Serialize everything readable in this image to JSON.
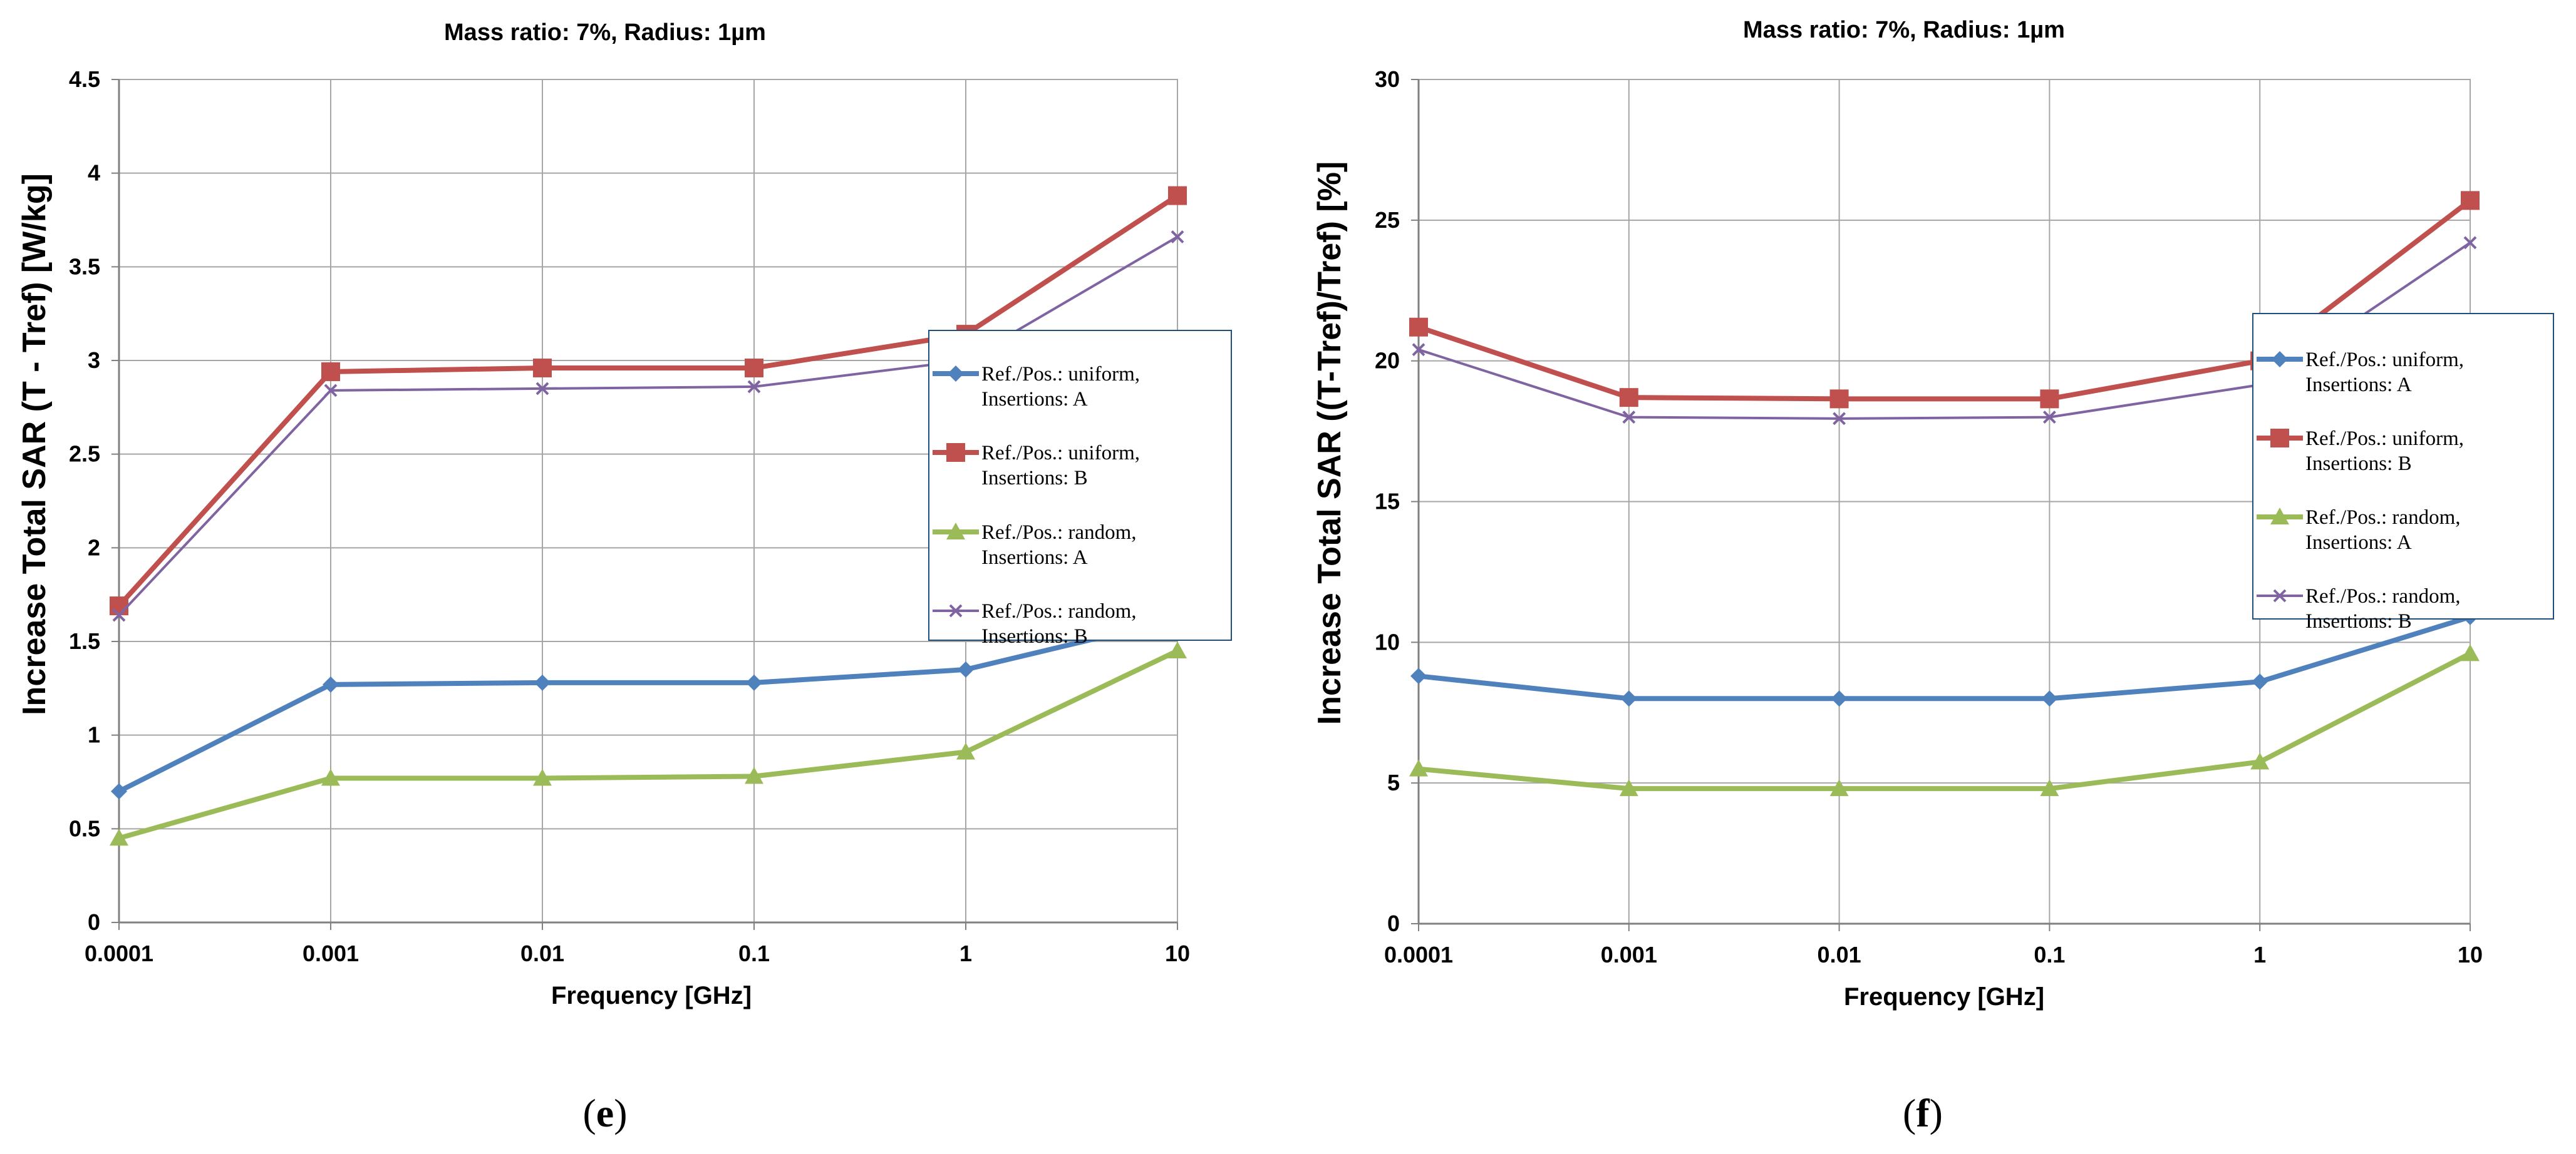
{
  "colors": {
    "uniform_A": "#4F81BD",
    "uniform_B": "#C0504D",
    "random_A": "#9BBB59",
    "random_B": "#8064A2",
    "grid": "#A6A6A6",
    "axis": "#808080",
    "legend_border": "#1F4E79"
  },
  "chart_data": [
    {
      "type": "line",
      "panel_caption": "e",
      "title": "Mass ratio: 7%, Radius: 1µm",
      "xlabel": "Frequency [GHz]",
      "ylabel": "Increase Total SAR (T - Tref) [W/kg]",
      "categories": [
        "0.0001",
        "0.001",
        "0.01",
        "0.1",
        "1",
        "10"
      ],
      "ylim": [
        0,
        4.5
      ],
      "yticks": [
        "0",
        "0.5",
        "1",
        "1.5",
        "2",
        "2.5",
        "3",
        "3.5",
        "4",
        "4.5"
      ],
      "grid": true,
      "legend_position": "right",
      "series": [
        {
          "key": "uniform_A",
          "name": "Ref./Pos.: uniform, Insertions: A",
          "line1": "Ref./Pos.: uniform,",
          "line2": "Insertions: A",
          "marker": "diamond",
          "values": [
            0.7,
            1.27,
            1.28,
            1.28,
            1.35,
            1.62
          ]
        },
        {
          "key": "uniform_B",
          "name": "Ref./Pos.: uniform, Insertions: B",
          "line1": "Ref./Pos.: uniform,",
          "line2": "Insertions: B",
          "marker": "square",
          "values": [
            1.69,
            2.94,
            2.96,
            2.96,
            3.14,
            3.88
          ]
        },
        {
          "key": "random_A",
          "name": "Ref./Pos.: random, Insertions: A",
          "line1": "Ref./Pos.: random,",
          "line2": "Insertions: A",
          "marker": "triangle",
          "values": [
            0.45,
            0.77,
            0.77,
            0.78,
            0.91,
            1.45
          ]
        },
        {
          "key": "random_B",
          "name": "Ref./Pos.: random, Insertions: B",
          "line1": "Ref./Pos.: random,",
          "line2": "Insertions: B",
          "marker": "x",
          "values": [
            1.64,
            2.84,
            2.85,
            2.86,
            3.0,
            3.66
          ]
        }
      ]
    },
    {
      "type": "line",
      "panel_caption": "f",
      "title": "Mass ratio: 7%, Radius: 1µm",
      "xlabel": "Frequency [GHz]",
      "ylabel": "Increase Total SAR ((T-Tref)/Tref) [%]",
      "categories": [
        "0.0001",
        "0.001",
        "0.01",
        "0.1",
        "1",
        "10"
      ],
      "ylim": [
        0,
        30
      ],
      "yticks": [
        "0",
        "5",
        "10",
        "15",
        "20",
        "25",
        "30"
      ],
      "grid": true,
      "legend_position": "right",
      "series": [
        {
          "key": "uniform_A",
          "name": "Ref./Pos.: uniform, Insertions: A",
          "line1": "Ref./Pos.: uniform,",
          "line2": "Insertions: A",
          "marker": "diamond",
          "values": [
            8.8,
            8.0,
            8.0,
            8.0,
            8.6,
            10.9
          ]
        },
        {
          "key": "uniform_B",
          "name": "Ref./Pos.: uniform, Insertions: B",
          "line1": "Ref./Pos.: uniform,",
          "line2": "Insertions: B",
          "marker": "square",
          "values": [
            21.2,
            18.7,
            18.65,
            18.65,
            20.0,
            25.7
          ]
        },
        {
          "key": "random_A",
          "name": "Ref./Pos.: random, Insertions: A",
          "line1": "Ref./Pos.: random,",
          "line2": "Insertions: A",
          "marker": "triangle",
          "values": [
            5.5,
            4.8,
            4.8,
            4.8,
            5.75,
            9.6
          ]
        },
        {
          "key": "random_B",
          "name": "Ref./Pos.: random, Insertions: B",
          "line1": "Ref./Pos.: random,",
          "line2": "Insertions: B",
          "marker": "x",
          "values": [
            20.4,
            18.0,
            17.95,
            18.0,
            19.15,
            24.2
          ]
        }
      ]
    }
  ]
}
